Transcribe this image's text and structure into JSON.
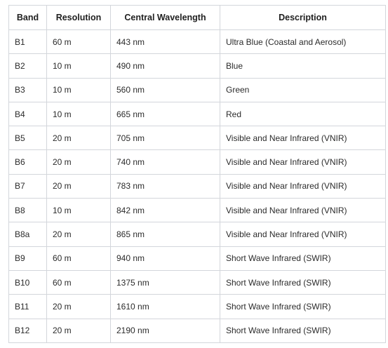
{
  "table": {
    "headers": [
      "Band",
      "Resolution",
      "Central Wavelength",
      "Description"
    ],
    "rows": [
      [
        "B1",
        "60 m",
        "443 nm",
        "Ultra Blue (Coastal and Aerosol)"
      ],
      [
        "B2",
        "10 m",
        "490 nm",
        "Blue"
      ],
      [
        "B3",
        "10 m",
        "560 nm",
        "Green"
      ],
      [
        "B4",
        "10 m",
        "665 nm",
        "Red"
      ],
      [
        "B5",
        "20 m",
        "705 nm",
        "Visible and Near Infrared (VNIR)"
      ],
      [
        "B6",
        "20 m",
        "740 nm",
        "Visible and Near Infrared (VNIR)"
      ],
      [
        "B7",
        "20 m",
        "783 nm",
        "Visible and Near Infrared (VNIR)"
      ],
      [
        "B8",
        "10 m",
        "842 nm",
        "Visible and Near Infrared (VNIR)"
      ],
      [
        "B8a",
        "20 m",
        "865 nm",
        "Visible and Near Infrared (VNIR)"
      ],
      [
        "B9",
        "60 m",
        "940 nm",
        "Short Wave Infrared (SWIR)"
      ],
      [
        "B10",
        "60 m",
        "1375 nm",
        "Short Wave Infrared (SWIR)"
      ],
      [
        "B11",
        "20 m",
        "1610 nm",
        "Short Wave Infrared (SWIR)"
      ],
      [
        "B12",
        "20 m",
        "2190 nm",
        "Short Wave Infrared (SWIR)"
      ]
    ]
  }
}
